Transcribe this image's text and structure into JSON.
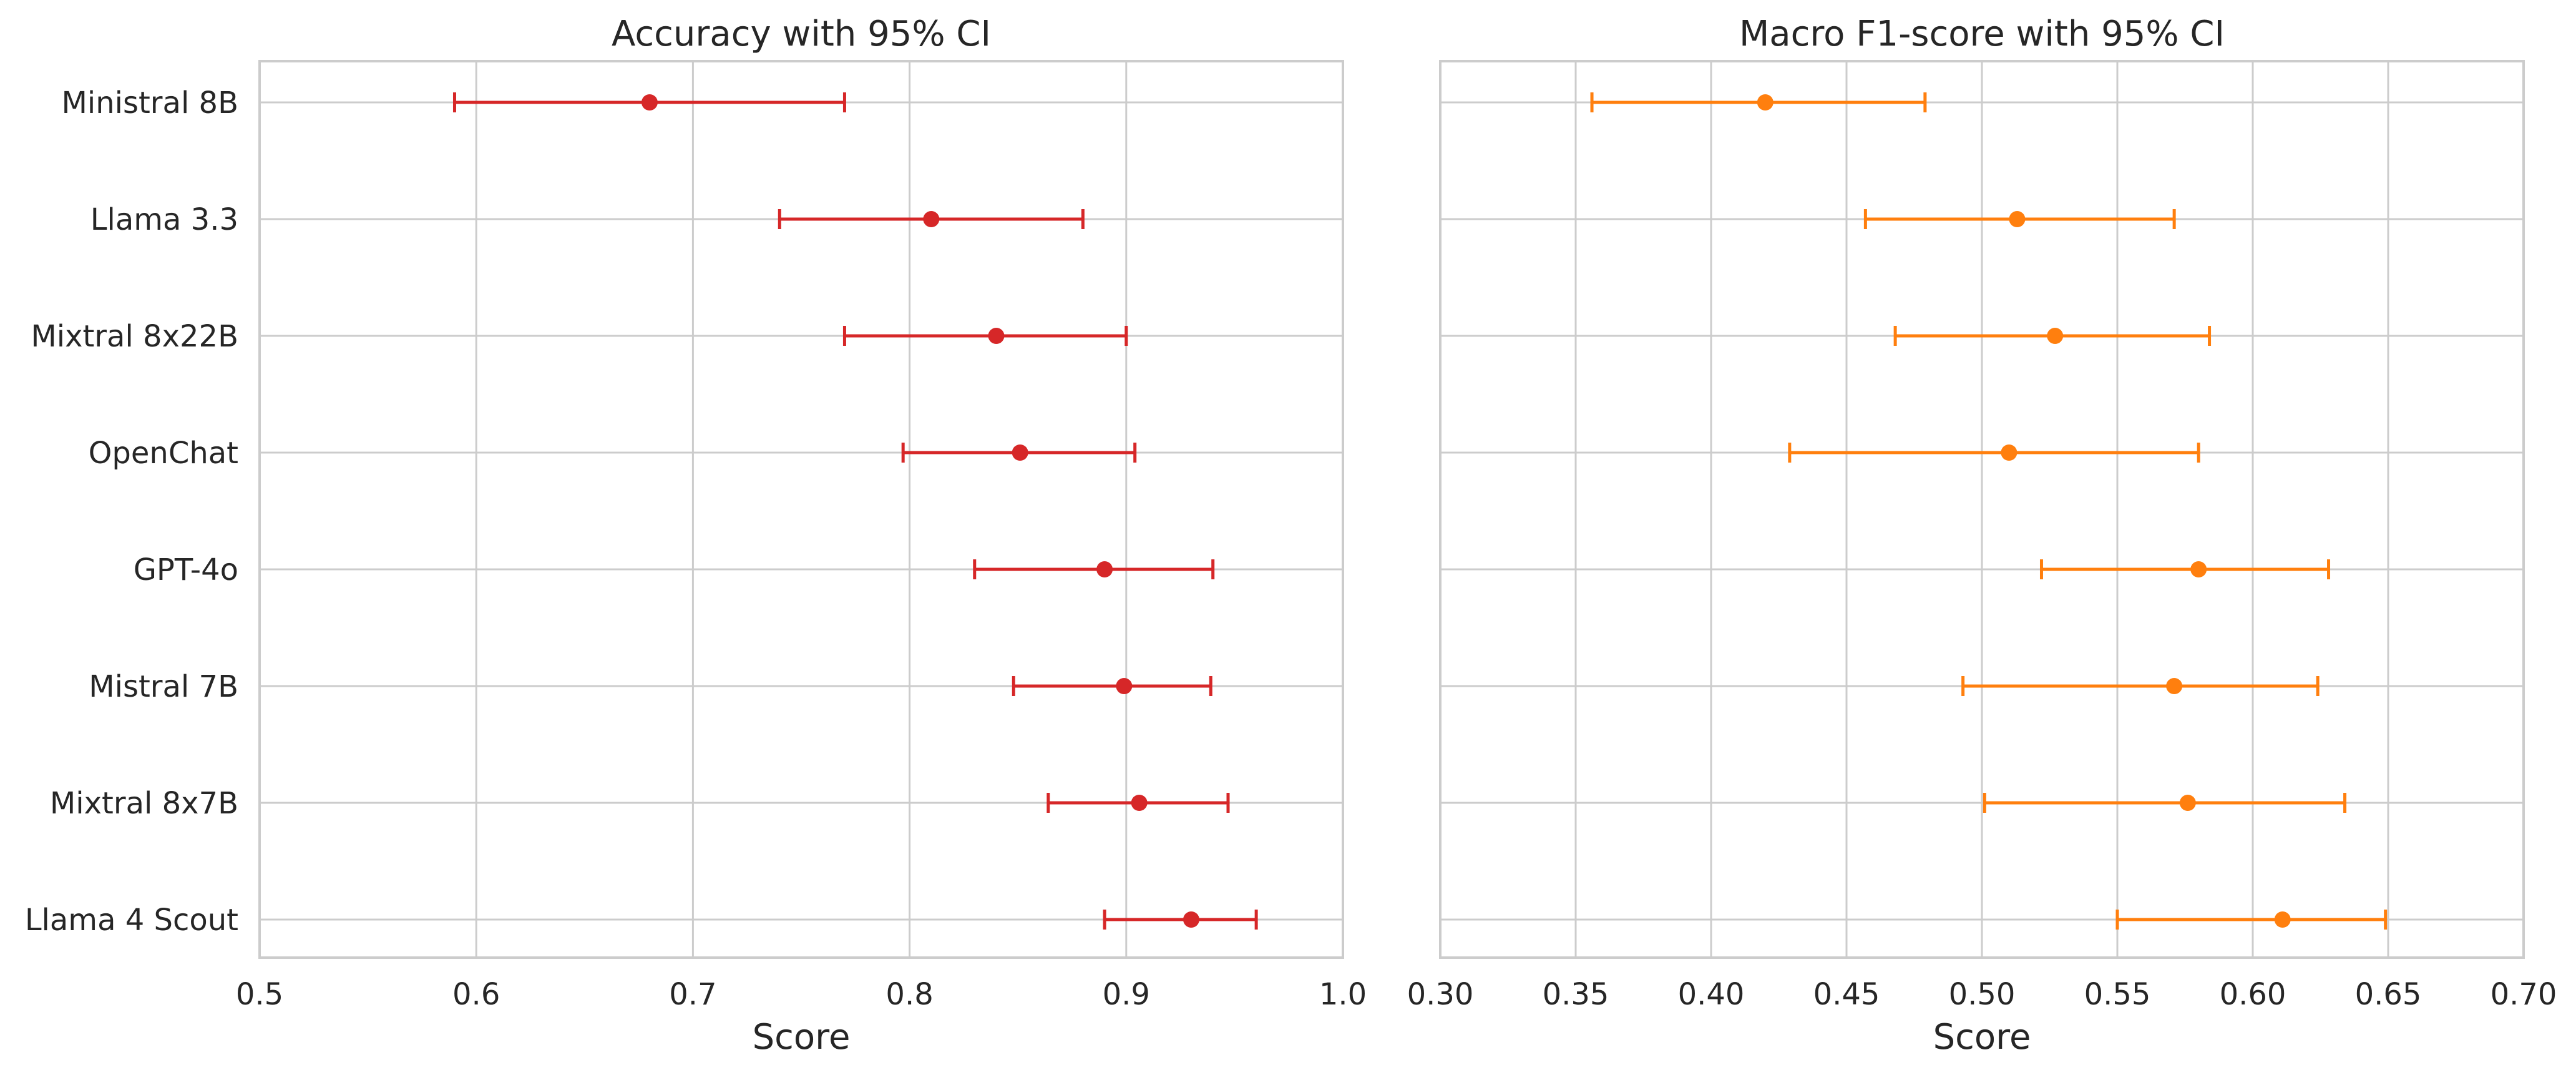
{
  "chart_data": [
    {
      "type": "scatter",
      "title": "Accuracy with 95% CI",
      "xlabel": "Score",
      "ylabel": "",
      "xlim": [
        0.5,
        1.0
      ],
      "xticks": [
        "0.5",
        "0.6",
        "0.7",
        "0.8",
        "0.9",
        "1.0"
      ],
      "xtick_values": [
        0.5,
        0.6,
        0.7,
        0.8,
        0.9,
        1.0
      ],
      "grid": true,
      "color": "#d62728",
      "categories": [
        "Ministral 8B",
        "Llama 3.3",
        "Mixtral 8x22B",
        "OpenChat",
        "GPT-4o",
        "Mistral 7B",
        "Mixtral 8x7B",
        "Llama 4 Scout"
      ],
      "values": [
        0.68,
        0.81,
        0.84,
        0.851,
        0.89,
        0.899,
        0.906,
        0.93
      ],
      "ci_low": [
        0.59,
        0.74,
        0.77,
        0.797,
        0.83,
        0.848,
        0.864,
        0.89
      ],
      "ci_high": [
        0.77,
        0.88,
        0.9,
        0.904,
        0.94,
        0.939,
        0.947,
        0.96
      ]
    },
    {
      "type": "scatter",
      "title": "Macro F1-score with 95% CI",
      "xlabel": "Score",
      "ylabel": "",
      "xlim": [
        0.3,
        0.7
      ],
      "xticks": [
        "0.30",
        "0.35",
        "0.40",
        "0.45",
        "0.50",
        "0.55",
        "0.60",
        "0.65",
        "0.70"
      ],
      "xtick_values": [
        0.3,
        0.35,
        0.4,
        0.45,
        0.5,
        0.55,
        0.6,
        0.65,
        0.7
      ],
      "grid": true,
      "color": "#ff7f0e",
      "categories": [
        "Ministral 8B",
        "Llama 3.3",
        "Mixtral 8x22B",
        "OpenChat",
        "GPT-4o",
        "Mistral 7B",
        "Mixtral 8x7B",
        "Llama 4 Scout"
      ],
      "values": [
        0.42,
        0.513,
        0.527,
        0.51,
        0.58,
        0.571,
        0.576,
        0.611
      ],
      "ci_low": [
        0.356,
        0.457,
        0.468,
        0.429,
        0.522,
        0.493,
        0.501,
        0.55
      ],
      "ci_high": [
        0.479,
        0.571,
        0.584,
        0.58,
        0.628,
        0.624,
        0.634,
        0.649
      ]
    }
  ]
}
